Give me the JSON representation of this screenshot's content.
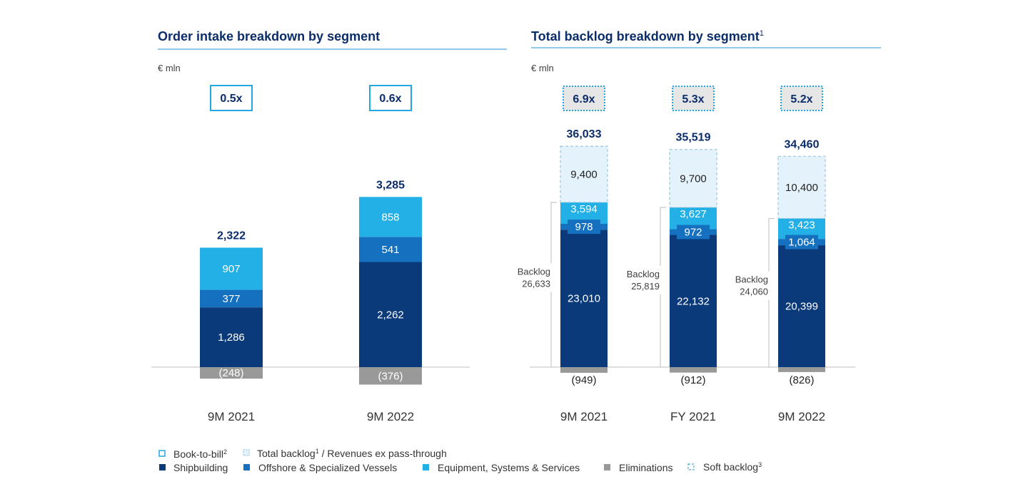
{
  "colors": {
    "shipbuilding": "#0b3a7a",
    "offshore": "#1570c0",
    "equipment": "#22b0e6",
    "eliminations": "#999999",
    "soft_backlog_fill": "#e4f3fb",
    "soft_backlog_border": "#9ac6e2",
    "title": "#0b2d6b",
    "rule": "#4fa9dd",
    "btb_border": "#22a7e0",
    "btb_fill_right": "#e6e6e6"
  },
  "chart_data": [
    {
      "type": "bar",
      "title": "Order intake breakdown by segment",
      "unit": "€ mln",
      "categories": [
        "9M 2021",
        "9M 2022"
      ],
      "book_to_bill": [
        "0.5x",
        "0.6x"
      ],
      "totals": [
        "2,322",
        "3,285"
      ],
      "series": [
        {
          "name": "Shipbuilding",
          "key": "shipbuilding",
          "values": [
            1286,
            2262
          ],
          "labels": [
            "1,286",
            "2,262"
          ]
        },
        {
          "name": "Offshore & Specialized Vessels",
          "key": "offshore",
          "values": [
            377,
            541
          ],
          "labels": [
            "377",
            "541"
          ]
        },
        {
          "name": "Equipment, Systems & Services",
          "key": "equipment",
          "values": [
            907,
            858
          ],
          "labels": [
            "907",
            "858"
          ]
        },
        {
          "name": "Eliminations",
          "key": "eliminations",
          "values": [
            -248,
            -376
          ],
          "labels": [
            "(248)",
            "(376)"
          ]
        }
      ]
    },
    {
      "type": "bar",
      "title": "Total backlog breakdown by segment",
      "title_sup": "1",
      "unit": "€ mln",
      "categories": [
        "9M 2021",
        "FY 2021",
        "9M 2022"
      ],
      "book_to_bill": [
        "6.9x",
        "5.3x",
        "5.2x"
      ],
      "totals": [
        "36,033",
        "35,519",
        "34,460"
      ],
      "backlog_label": "Backlog",
      "backlog_values": [
        "26,633",
        "25,819",
        "24,060"
      ],
      "series": [
        {
          "name": "Shipbuilding",
          "key": "shipbuilding",
          "values": [
            23010,
            22132,
            20399
          ],
          "labels": [
            "23,010",
            "22,132",
            "20,399"
          ]
        },
        {
          "name": "Offshore & Specialized Vessels",
          "key": "offshore",
          "values": [
            978,
            972,
            1064
          ],
          "labels": [
            "978",
            "972",
            "1,064"
          ]
        },
        {
          "name": "Equipment, Systems & Services",
          "key": "equipment",
          "values": [
            3594,
            3627,
            3423
          ],
          "labels": [
            "3,594",
            "3,627",
            "3,423"
          ]
        },
        {
          "name": "Soft backlog",
          "key": "soft_backlog",
          "values": [
            9400,
            9700,
            10400
          ],
          "labels": [
            "9,400",
            "9,700",
            "10,400"
          ]
        },
        {
          "name": "Eliminations",
          "key": "eliminations",
          "values": [
            -949,
            -912,
            -826
          ],
          "labels": [
            "(949)",
            "(912)",
            "(826)"
          ]
        }
      ]
    }
  ],
  "legend": {
    "book_to_bill": "Book-to-bill",
    "book_to_bill_sup": "2",
    "total_backlog": "Total backlog",
    "total_backlog_sup": "1",
    "total_backlog_rest": " / Revenues ex pass-through",
    "shipbuilding": "Shipbuilding",
    "offshore": "Offshore & Specialized Vessels",
    "equipment": "Equipment, Systems & Services",
    "eliminations": "Eliminations",
    "soft_backlog": "Soft backlog",
    "soft_backlog_sup": "3"
  }
}
